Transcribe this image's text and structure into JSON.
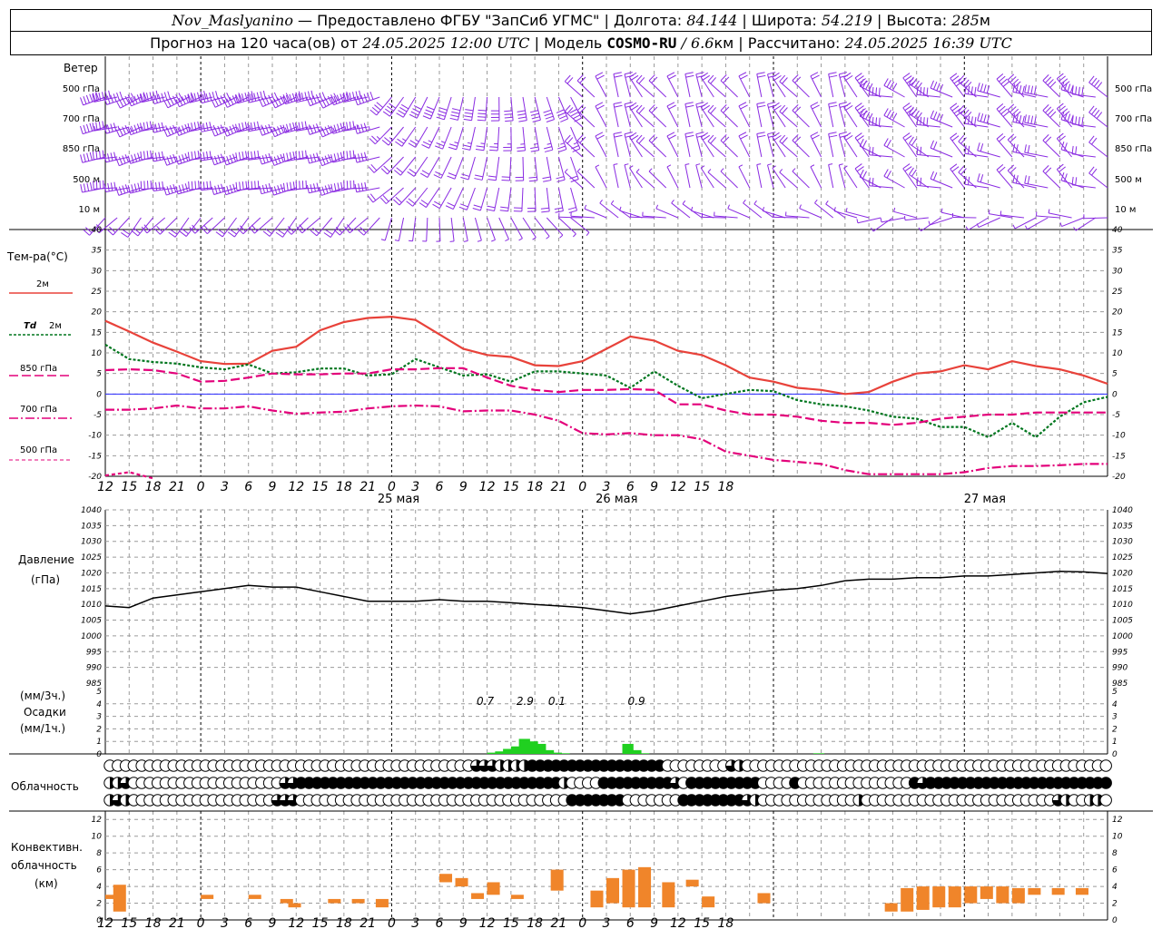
{
  "header": {
    "station": "Nov_Maslyanino",
    "provider": "— Предоставлено ФГБУ \"ЗапСиб УГМС\"",
    "lon_label": "Долгота:",
    "lon": "84.144",
    "lat_label": "Широта:",
    "lat": "54.219",
    "alt_label": "Высота:",
    "alt": "285",
    "alt_unit": "м",
    "forecast_label": "Прогноз на 120 часа(ов) от",
    "forecast_time": "24.05.2025 12:00 UTC",
    "model_label": "Модель",
    "model": "COSMO-RU",
    "resolution": "/ 6.6",
    "res_unit": "км",
    "calc_label": "Рассчитано:",
    "calc_time": "24.05.2025 16:39 UTC"
  },
  "labels": {
    "wind": "Ветер",
    "levels": [
      "500 гПа",
      "700 гПа",
      "850 гПа",
      "500 м",
      "10  м"
    ],
    "temp_title": "Тем-ра(°C)",
    "legend": [
      "2м",
      "Td",
      "2м",
      "850 гПа",
      "700 гПа",
      "500 гПа"
    ],
    "pressure": "Давление",
    "pressure_unit": "(гПа)",
    "precip_unit1": "(мм/3ч.)",
    "precip": "Осадки",
    "precip_unit2": "(мм/1ч.)",
    "clouds": "Облачность",
    "conv1": "Конвективн.",
    "conv2": "облачность",
    "conv3": "(км)"
  },
  "colors": {
    "t2m": "#e8423a",
    "td2m": "#00761e",
    "t850": "#e3007a",
    "t700": "#e3007a",
    "t500": "#e3007a",
    "wind": "#8a2be2",
    "pressure": "#000000",
    "precip": "#20d020",
    "conv": "#f0852a",
    "zero": "#2a2aff",
    "grid": "#9a9a9a"
  },
  "x_axis": {
    "ticks": [
      "12",
      "15",
      "18",
      "21",
      "0",
      "3",
      "6",
      "9",
      "12",
      "15",
      "18",
      "21",
      "0",
      "3",
      "6",
      "9",
      "12",
      "15",
      "18",
      "21",
      "0",
      "3",
      "6",
      "9",
      "12",
      "15",
      "18"
    ],
    "days": [
      "25 мая",
      "26 мая",
      "27 мая"
    ]
  },
  "chart_data": [
    {
      "type": "wind_barbs",
      "levels": [
        "500 гПа",
        "700 гПа",
        "850 гПа",
        "500 м",
        "10  м"
      ],
      "note_directions": "westerly/southwesterly first 36h, then shifting northerly and weakening",
      "time_hours": [
        0,
        126
      ]
    },
    {
      "type": "line",
      "title": "Тем-ра(°C)",
      "ylim": [
        -20,
        40
      ],
      "yticks": [
        40,
        35,
        30,
        25,
        20,
        15,
        10,
        5,
        0,
        -5,
        -10,
        -15,
        -20
      ],
      "x_hours_from_start": [
        0,
        3,
        6,
        9,
        12,
        15,
        18,
        21,
        24,
        27,
        30,
        33,
        36,
        39,
        42,
        45,
        48,
        51,
        54,
        57,
        60,
        63,
        66,
        69,
        72,
        75,
        78,
        81,
        84,
        87,
        90,
        93,
        96,
        99,
        102,
        105,
        108,
        111,
        114,
        117,
        120,
        123,
        126
      ],
      "series": [
        {
          "name": "2м",
          "values": [
            17.8,
            15.2,
            12.5,
            10.3,
            8,
            7.3,
            7.4,
            10.5,
            11.5,
            15.5,
            17.5,
            18.5,
            18.8,
            18,
            14.5,
            11,
            9.5,
            9,
            7,
            6.8,
            8,
            11,
            14,
            13,
            10.5,
            9.5,
            7,
            4,
            3,
            1.5,
            1,
            0,
            0.5,
            3,
            5,
            5.5,
            7,
            6,
            8,
            6.8,
            6,
            4.5,
            2.5
          ]
        },
        {
          "name": "Td 2м",
          "values": [
            12,
            8.5,
            7.8,
            7.4,
            6.5,
            6,
            7.2,
            5,
            5.3,
            6.2,
            6.2,
            4.5,
            4.8,
            8.5,
            6.5,
            4.5,
            4.8,
            3,
            5.5,
            5.5,
            5,
            4.5,
            1.5,
            5.5,
            2,
            -1,
            0,
            1,
            0.7,
            -1.5,
            -2.5,
            -3,
            -4,
            -5.5,
            -6,
            -8,
            -8,
            -10.5,
            -7,
            -10.5,
            -5.5,
            -2,
            -0.7
          ]
        },
        {
          "name": "850 гПа",
          "values": [
            5.8,
            6,
            5.8,
            5,
            3,
            3.2,
            4,
            5,
            4.8,
            4.8,
            5,
            5,
            6,
            6,
            6.3,
            6.3,
            4,
            2,
            1,
            0.5,
            1,
            1,
            1.2,
            1,
            -2.5,
            -2.5,
            -4,
            -5,
            -5,
            -5.5,
            -6.5,
            -7,
            -7,
            -7.5,
            -7,
            -6,
            -5.5,
            -5,
            -5,
            -4.5,
            -4.5,
            -4.5,
            -4.5
          ]
        },
        {
          "name": "700 гПа",
          "values": [
            -3.8,
            -3.8,
            -3.5,
            -2.8,
            -3.5,
            -3.5,
            -3,
            -4,
            -4.8,
            -4.5,
            -4.3,
            -3.5,
            -3,
            -2.8,
            -3,
            -4.2,
            -4,
            -4,
            -5,
            -6.5,
            -9.5,
            -9.8,
            -9.5,
            -10,
            -10,
            -11,
            -14,
            -15,
            -16,
            -16.5,
            -17,
            -18.5,
            -19.5,
            -19.5,
            -19.5,
            -19.5,
            -19,
            -18,
            -17.5,
            -17.5,
            -17.3,
            -17,
            -17
          ]
        },
        {
          "name": "500 гПа",
          "values": [
            -19.8,
            -19,
            -20.5,
            null,
            null,
            null,
            null,
            null,
            null,
            null,
            null,
            null,
            null,
            null,
            null,
            null,
            null,
            null,
            null,
            null,
            null,
            null,
            null,
            null,
            null,
            null,
            null,
            null,
            null,
            null,
            null,
            null,
            null,
            null,
            null,
            null,
            null,
            null,
            null,
            null,
            null,
            null,
            null
          ]
        }
      ]
    },
    {
      "type": "line",
      "title": "Давление",
      "ylabel": "(гПа)",
      "ylim": [
        985,
        1040
      ],
      "yticks": [
        1040,
        1035,
        1030,
        1025,
        1020,
        1015,
        1010,
        1005,
        1000,
        995,
        990,
        985
      ],
      "x_hours_from_start": [
        0,
        3,
        6,
        9,
        12,
        15,
        18,
        21,
        24,
        27,
        30,
        33,
        36,
        39,
        42,
        45,
        48,
        51,
        54,
        57,
        60,
        63,
        66,
        69,
        72,
        75,
        78,
        81,
        84,
        87,
        90,
        93,
        96,
        99,
        102,
        105,
        108,
        111,
        114,
        117,
        120,
        123,
        126
      ],
      "values": [
        1009.5,
        1009,
        1012,
        1013,
        1014,
        1015,
        1016,
        1015.5,
        1015.5,
        1014,
        1012.5,
        1011,
        1011,
        1011,
        1011.5,
        1011,
        1011,
        1010.5,
        1010,
        1009.5,
        1009,
        1008,
        1007,
        1008,
        1009.5,
        1011,
        1012.5,
        1013.5,
        1014.5,
        1015,
        1016,
        1017.5,
        1018,
        1018,
        1018.5,
        1018.5,
        1019,
        1019,
        1019.5,
        1020,
        1020.5,
        1020.3,
        1019.8
      ]
    },
    {
      "type": "bar",
      "title": "Осадки",
      "ylim": [
        0,
        5
      ],
      "annotations": [
        {
          "hour": 48,
          "text": "0.7"
        },
        {
          "hour": 53,
          "text": "2.9"
        },
        {
          "hour": 57,
          "text": "0.1"
        },
        {
          "hour": 67,
          "text": "0.9"
        }
      ],
      "x_hours_from_start": [
        48,
        49,
        50,
        51,
        52,
        53,
        54,
        55,
        56,
        57,
        65,
        66,
        67,
        89
      ],
      "values": [
        0.1,
        0.2,
        0.4,
        0.6,
        1.2,
        1.0,
        0.8,
        0.3,
        0.1,
        0.05,
        0.8,
        0.3,
        0.05,
        0.05
      ]
    },
    {
      "type": "cloud_symbols",
      "title": "Облачность",
      "rows": [
        "OOOOOOOOOOOOOOOOOOOOOOOOOOOOOOOOOOOOOOOOOOOOOOQQQHHHHFFFFFFFFFFFFFFFFFOOOOOOOOQHOOOOOOOOOOOOOOOOOOOOOOOOOOOOOOOOOOOOOOOOOOOOOOOOOOOOOOOOOOOOOOOOOOOOOOOOQHHHHHHH",
        "HHQOOOOOOOOOOOOOOOOOOOQQFFFFFFFFFFFFFFFFFFFFFFFFFFFFFFFFFHOOOOFFFFFFFFFQOFFFFFFFFFOOOOFOOOOOOOOOOOOOOFQFFFFFFFFFFFFFFFFFFFFFFFFFFQFFFFFFFFFFFFFFFFFFFFFFFFF",
        "HQHOOOOOOOOOOOOOOOOOOQQQOOOOOOOOOOOOOOOOOOOOOOOOOOOOOOOOOOFFFFFFFOOOOOOOFFFFFFFFQHOOOOOOOOOOOOHOOOOOOOOOOOOOOOOOOOOOOOOQHOOHHOOOOOOOOOOOOOOOOOOOOOOOOOOOOOOO"
      ]
    },
    {
      "type": "bar",
      "title": "Конвективн. облачность",
      "ylabel": "(км)",
      "ylim": [
        0,
        13
      ],
      "yticks": [
        12,
        10,
        8,
        6,
        4,
        2,
        0
      ],
      "bars": [
        {
          "hour": 0,
          "base": 2.5,
          "top": 3.0
        },
        {
          "hour": 1,
          "base": 1.0,
          "top": 4.2
        },
        {
          "hour": 12,
          "base": 2.5,
          "top": 3.0
        },
        {
          "hour": 18,
          "base": 2.5,
          "top": 3.0
        },
        {
          "hour": 22,
          "base": 2.0,
          "top": 2.5
        },
        {
          "hour": 23,
          "base": 1.5,
          "top": 2.0
        },
        {
          "hour": 28,
          "base": 2.0,
          "top": 2.5
        },
        {
          "hour": 31,
          "base": 2.0,
          "top": 2.5
        },
        {
          "hour": 34,
          "base": 1.5,
          "top": 2.5
        },
        {
          "hour": 42,
          "base": 4.5,
          "top": 5.5
        },
        {
          "hour": 44,
          "base": 4.0,
          "top": 5.0
        },
        {
          "hour": 46,
          "base": 2.5,
          "top": 3.2
        },
        {
          "hour": 48,
          "base": 3.0,
          "top": 4.5
        },
        {
          "hour": 51,
          "base": 2.5,
          "top": 3.0
        },
        {
          "hour": 56,
          "base": 3.5,
          "top": 6.0
        },
        {
          "hour": 61,
          "base": 1.5,
          "top": 3.5
        },
        {
          "hour": 63,
          "base": 2.0,
          "top": 5.0
        },
        {
          "hour": 65,
          "base": 1.5,
          "top": 6.0
        },
        {
          "hour": 67,
          "base": 1.5,
          "top": 6.3
        },
        {
          "hour": 70,
          "base": 1.5,
          "top": 4.5
        },
        {
          "hour": 73,
          "base": 4.0,
          "top": 4.8
        },
        {
          "hour": 75,
          "base": 1.5,
          "top": 2.8
        },
        {
          "hour": 82,
          "base": 2.0,
          "top": 3.2
        },
        {
          "hour": 98,
          "base": 1.0,
          "top": 2.0
        },
        {
          "hour": 100,
          "base": 1.0,
          "top": 3.8
        },
        {
          "hour": 102,
          "base": 1.2,
          "top": 4.0
        },
        {
          "hour": 104,
          "base": 1.5,
          "top": 4.0
        },
        {
          "hour": 106,
          "base": 1.5,
          "top": 4.0
        },
        {
          "hour": 108,
          "base": 2.0,
          "top": 4.0
        },
        {
          "hour": 110,
          "base": 2.5,
          "top": 4.0
        },
        {
          "hour": 112,
          "base": 2.0,
          "top": 4.0
        },
        {
          "hour": 114,
          "base": 2.0,
          "top": 3.8
        },
        {
          "hour": 116,
          "base": 3.0,
          "top": 3.8
        },
        {
          "hour": 119,
          "base": 3.0,
          "top": 3.8
        },
        {
          "hour": 122,
          "base": 3.0,
          "top": 3.8
        }
      ]
    }
  ]
}
